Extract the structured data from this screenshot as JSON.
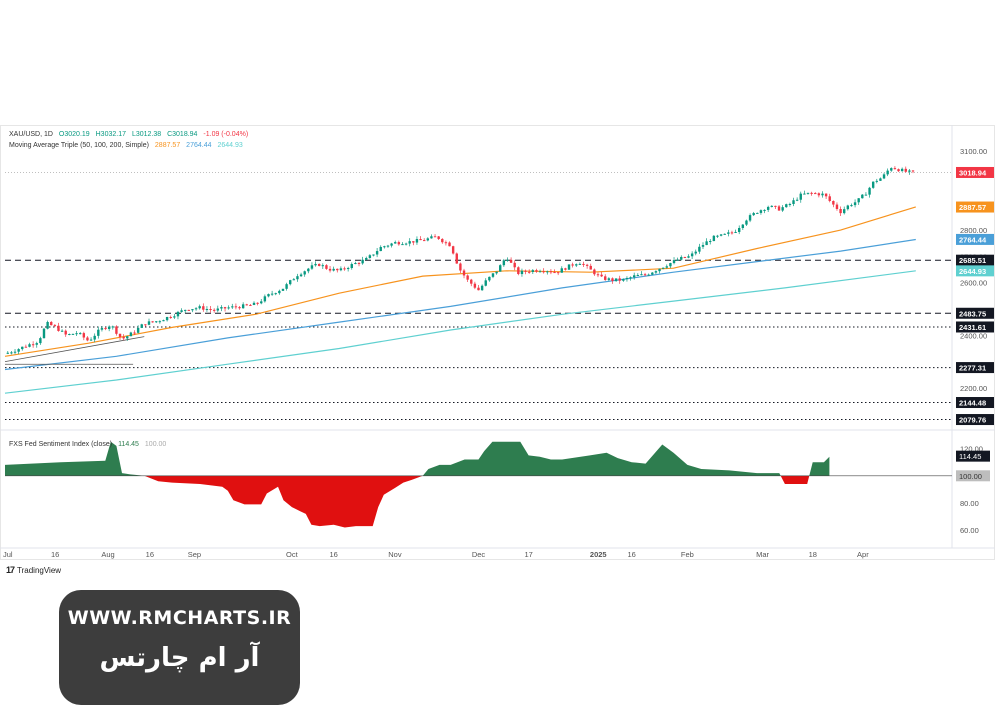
{
  "legend": {
    "symbol": "XAU/USD, 1D",
    "open": "O3020.19",
    "high": "H3032.17",
    "low": "L3012.38",
    "close": "C3018.94",
    "change": "-1.09 (-0.04%)",
    "ma_label": "Moving Average Triple (50, 100, 200, Simple)",
    "ma50": "2887.57",
    "ma100": "2764.44",
    "ma200": "2644.93",
    "indicator_label": "FXS Fed Sentiment Index (close)",
    "indicator_value": "114.45",
    "indicator_base": "100.00"
  },
  "colors": {
    "up": "#089981",
    "down": "#f23645",
    "ma50": "#f7931e",
    "ma100": "#4a9fd8",
    "ma200": "#5fd0d0",
    "sentiment_pos": "#2e7d4f",
    "sentiment_neg": "#e01010",
    "last_price_tag": "#f23645"
  },
  "branding": {
    "tradingview": "TradingView",
    "watermark_url": "WWW.RMCHARTS.IR",
    "watermark_fa": "آر ام چارتس"
  },
  "chart_data": [
    {
      "type": "line",
      "title": "XAU/USD, 1D",
      "series_kind": "candlestick",
      "ylim": [
        2040,
        3150
      ],
      "y_ticks": [
        "3100.00",
        "2800.00",
        "2700.00",
        "2600.00",
        "2400.00",
        "2200.00"
      ],
      "price_labels": [
        {
          "text": "3018.94",
          "value": 3018.94,
          "color": "#f23645"
        },
        {
          "text": "2887.57",
          "value": 2887.57,
          "color": "#f7931e"
        },
        {
          "text": "2764.44",
          "value": 2764.44,
          "color": "#4a9fd8"
        },
        {
          "text": "2685.51",
          "value": 2685.51,
          "color": "#131722"
        },
        {
          "text": "2644.93",
          "value": 2644.93,
          "color": "#5fd0d0"
        },
        {
          "text": "2483.75",
          "value": 2483.75,
          "color": "#131722"
        },
        {
          "text": "2431.61",
          "value": 2431.61,
          "color": "#131722"
        },
        {
          "text": "2277.31",
          "value": 2277.31,
          "color": "#131722"
        },
        {
          "text": "2144.48",
          "value": 2144.48,
          "color": "#131722"
        },
        {
          "text": "2079.76",
          "value": 2079.76,
          "color": "#131722"
        }
      ],
      "levels": [
        {
          "value": 2685.51,
          "style": "dashed"
        },
        {
          "value": 2483.75,
          "style": "dashed"
        },
        {
          "value": 2431.61,
          "style": "dotted"
        },
        {
          "value": 2277.31,
          "style": "dotted"
        },
        {
          "value": 2144.48,
          "style": "dotted"
        },
        {
          "value": 2079.76,
          "style": "dotted"
        }
      ],
      "x_ticks": [
        "Jul",
        "16",
        "Aug",
        "16",
        "Sep",
        "Oct",
        "16",
        "Nov",
        "Dec",
        "17",
        "2025",
        "16",
        "Feb",
        "Mar",
        "18",
        "Apr"
      ],
      "close_series": [
        {
          "name": "Close",
          "points": [
            [
              0,
              2330
            ],
            [
              4,
              2345
            ],
            [
              8,
              2362
            ],
            [
              12,
              2378
            ],
            [
              15,
              2445
            ],
            [
              18,
              2432
            ],
            [
              22,
              2400
            ],
            [
              26,
              2410
            ],
            [
              30,
              2378
            ],
            [
              34,
              2420
            ],
            [
              38,
              2440
            ],
            [
              42,
              2385
            ],
            [
              46,
              2410
            ],
            [
              50,
              2445
            ],
            [
              55,
              2455
            ],
            [
              60,
              2475
            ],
            [
              65,
              2500
            ],
            [
              70,
              2505
            ],
            [
              75,
              2495
            ],
            [
              80,
              2505
            ],
            [
              85,
              2510
            ],
            [
              90,
              2518
            ],
            [
              95,
              2555
            ],
            [
              100,
              2580
            ],
            [
              105,
              2630
            ],
            [
              110,
              2660
            ],
            [
              113,
              2670
            ],
            [
              116,
              2652
            ],
            [
              120,
              2645
            ],
            [
              125,
              2670
            ],
            [
              130,
              2690
            ],
            [
              135,
              2735
            ],
            [
              140,
              2752
            ],
            [
              145,
              2755
            ],
            [
              150,
              2762
            ],
            [
              155,
              2775
            ],
            [
              157,
              2760
            ],
            [
              160,
              2742
            ],
            [
              163,
              2655
            ],
            [
              166,
              2610
            ],
            [
              170,
              2572
            ],
            [
              173,
              2610
            ],
            [
              177,
              2650
            ],
            [
              180,
              2700
            ],
            [
              184,
              2636
            ],
            [
              188,
              2645
            ],
            [
              193,
              2650
            ],
            [
              198,
              2640
            ],
            [
              202,
              2660
            ],
            [
              206,
              2680
            ],
            [
              210,
              2650
            ],
            [
              214,
              2618
            ],
            [
              218,
              2610
            ],
            [
              222,
              2610
            ],
            [
              226,
              2625
            ],
            [
              230,
              2630
            ],
            [
              234,
              2650
            ],
            [
              238,
              2670
            ],
            [
              242,
              2690
            ],
            [
              246,
              2700
            ],
            [
              250,
              2740
            ],
            [
              254,
              2770
            ],
            [
              258,
              2780
            ],
            [
              262,
              2795
            ],
            [
              266,
              2840
            ],
            [
              270,
              2870
            ],
            [
              274,
              2890
            ],
            [
              278,
              2880
            ],
            [
              282,
              2900
            ],
            [
              286,
              2935
            ],
            [
              290,
              2940
            ],
            [
              294,
              2935
            ],
            [
              297,
              2900
            ],
            [
              300,
              2870
            ],
            [
              303,
              2895
            ],
            [
              306,
              2910
            ],
            [
              309,
              2940
            ],
            [
              312,
              2985
            ],
            [
              315,
              3000
            ],
            [
              318,
              3040
            ],
            [
              321,
              3030
            ],
            [
              324,
              3020
            ],
            [
              327,
              3019
            ]
          ]
        }
      ],
      "moving_averages": [
        {
          "name": "MA 50",
          "value": 2887.57,
          "points": [
            [
              0,
              2320
            ],
            [
              30,
              2370
            ],
            [
              60,
              2430
            ],
            [
              90,
              2480
            ],
            [
              120,
              2560
            ],
            [
              150,
              2625
            ],
            [
              180,
              2645
            ],
            [
              210,
              2640
            ],
            [
              240,
              2655
            ],
            [
              270,
              2730
            ],
            [
              300,
              2800
            ],
            [
              327,
              2888
            ]
          ]
        },
        {
          "name": "MA 100",
          "value": 2764.44,
          "points": [
            [
              0,
              2270
            ],
            [
              40,
              2320
            ],
            [
              80,
              2390
            ],
            [
              120,
              2450
            ],
            [
              160,
              2510
            ],
            [
              200,
              2580
            ],
            [
              240,
              2640
            ],
            [
              270,
              2680
            ],
            [
              300,
              2720
            ],
            [
              327,
              2764
            ]
          ]
        },
        {
          "name": "MA 200",
          "value": 2644.93,
          "points": [
            [
              0,
              2180
            ],
            [
              40,
              2230
            ],
            [
              80,
              2290
            ],
            [
              120,
              2350
            ],
            [
              160,
              2420
            ],
            [
              200,
              2480
            ],
            [
              240,
              2530
            ],
            [
              280,
              2580
            ],
            [
              327,
              2645
            ]
          ]
        }
      ],
      "x_range": [
        0,
        340
      ]
    },
    {
      "type": "area",
      "title": "FXS Fed Sentiment Index (close)",
      "ylim": [
        55,
        130
      ],
      "y_ticks": [
        "120.00",
        "100.00",
        "80.00",
        "60.00"
      ],
      "baseline": 100,
      "last_value": 114.45,
      "series": [
        {
          "name": "FXS Fed Sentiment Index (close)",
          "points": [
            [
              0,
              108
            ],
            [
              20,
              110
            ],
            [
              36,
              111
            ],
            [
              38,
              125
            ],
            [
              40,
              122
            ],
            [
              42,
              102
            ],
            [
              45,
              101
            ],
            [
              50,
              100
            ],
            [
              55,
              96
            ],
            [
              60,
              95
            ],
            [
              70,
              94
            ],
            [
              78,
              92
            ],
            [
              80,
              89
            ],
            [
              82,
              82
            ],
            [
              86,
              79
            ],
            [
              92,
              79
            ],
            [
              94,
              87
            ],
            [
              98,
              92
            ],
            [
              100,
              82
            ],
            [
              103,
              77
            ],
            [
              106,
              74
            ],
            [
              108,
              72
            ],
            [
              110,
              64
            ],
            [
              113,
              63
            ],
            [
              118,
              64
            ],
            [
              122,
              62
            ],
            [
              126,
              63
            ],
            [
              132,
              63
            ],
            [
              134,
              77
            ],
            [
              136,
              86
            ],
            [
              140,
              91
            ],
            [
              143,
              95
            ],
            [
              146,
              97
            ],
            [
              150,
              100
            ],
            [
              152,
              105
            ],
            [
              156,
              108
            ],
            [
              160,
              108
            ],
            [
              165,
              112
            ],
            [
              170,
              112
            ],
            [
              172,
              118
            ],
            [
              175,
              125
            ],
            [
              185,
              125
            ],
            [
              188,
              115
            ],
            [
              192,
              114
            ],
            [
              196,
              112
            ],
            [
              200,
              112
            ],
            [
              210,
              115
            ],
            [
              216,
              117
            ],
            [
              220,
              113
            ],
            [
              225,
              110
            ],
            [
              230,
              109
            ],
            [
              236,
              123
            ],
            [
              240,
              117
            ],
            [
              245,
              108
            ],
            [
              250,
              105
            ],
            [
              260,
              104
            ],
            [
              270,
              102
            ],
            [
              278,
              102
            ],
            [
              280,
              94
            ],
            [
              284,
              94
            ],
            [
              288,
              94
            ],
            [
              290,
              110
            ],
            [
              294,
              110
            ],
            [
              296,
              114
            ]
          ]
        }
      ],
      "x_range": [
        0,
        340
      ]
    }
  ]
}
